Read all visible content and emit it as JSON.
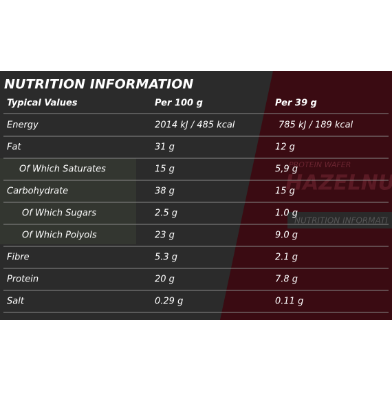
{
  "background_text": [
    "PROTEIN WAFER",
    "HAZELNUT",
    "NUTRITION INFORMATI"
  ],
  "header": {
    "title": "NUTRITION INFORMATION"
  },
  "table": {
    "columns": [
      "Typical Values",
      "Per 100 g",
      "Per 39 g"
    ],
    "rows": [
      [
        "Energy",
        "2014 kJ / 485 kcal",
        "785 kJ / 189 kcal"
      ],
      [
        "Fat",
        "31 g",
        "12 g"
      ],
      [
        "Of Which Saturates",
        "15 g",
        "5,9 g"
      ],
      [
        "Carbohydrate",
        "38 g",
        "15 g"
      ],
      [
        "Of Which Sugars",
        "2.5 g",
        "1.0 g"
      ],
      [
        "Of Which Polyols",
        "23 g",
        "9.0 g"
      ],
      [
        "Fibre",
        "5.3 g",
        "2.1 g"
      ],
      [
        "Protein",
        "20 g",
        "7.8 g"
      ],
      [
        "Salt",
        "0.29 g",
        "0.11 g"
      ]
    ]
  }
}
